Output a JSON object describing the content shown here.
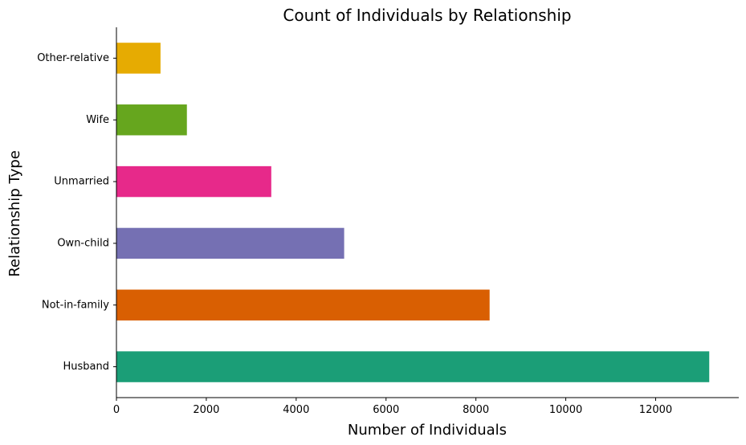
{
  "chart_data": {
    "type": "bar",
    "orientation": "horizontal",
    "title": "Count of Individuals by Relationship",
    "xlabel": "Number of Individuals",
    "ylabel": "Relationship Type",
    "categories": [
      "Husband",
      "Not-in-family",
      "Own-child",
      "Unmarried",
      "Wife",
      "Other-relative"
    ],
    "values": [
      13193,
      8305,
      5068,
      3446,
      1568,
      981
    ],
    "colors": [
      "#1b9e77",
      "#d95f02",
      "#7570b3",
      "#e7298a",
      "#66a61e",
      "#e6ab02"
    ],
    "xlim": [
      0,
      13850
    ],
    "xticks": [
      0,
      2000,
      4000,
      6000,
      8000,
      10000,
      12000
    ],
    "grid": false,
    "legend": "none"
  }
}
